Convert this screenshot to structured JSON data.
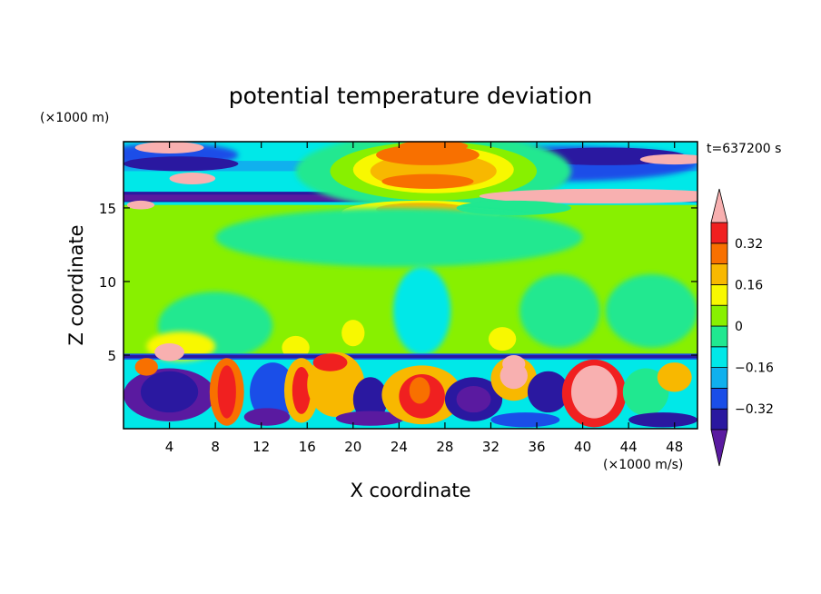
{
  "chart_data": {
    "type": "heatmap",
    "title": "potential temperature deviation",
    "xlabel": "X coordinate",
    "ylabel": "Z coordinate",
    "x_unit": "(×1000 m/s)",
    "y_unit": "(×1000 m)",
    "time_label": "t=637200 s",
    "xlim": [
      0,
      50
    ],
    "ylim": [
      0,
      19.5
    ],
    "x_ticks": [
      4,
      8,
      12,
      16,
      20,
      24,
      28,
      32,
      36,
      40,
      44,
      48
    ],
    "y_ticks": [
      5,
      10,
      15
    ],
    "colorbar": {
      "levels": [
        -0.4,
        -0.32,
        -0.24,
        -0.16,
        -0.08,
        0,
        0.08,
        0.16,
        0.24,
        0.32,
        0.4
      ],
      "colors": [
        "#5a1aa0",
        "#2a18a0",
        "#1a4ee8",
        "#10b0ee",
        "#00e8e8",
        "#20e890",
        "#88f000",
        "#f8f800",
        "#f8b800",
        "#f87000",
        "#f02020",
        "#f8b0b0"
      ],
      "labels": [
        "-0.32",
        "-0.16",
        "0",
        "0.16",
        "0.32"
      ],
      "label_values": [
        -0.32,
        -0.16,
        0,
        0.16,
        0.32
      ]
    }
  }
}
